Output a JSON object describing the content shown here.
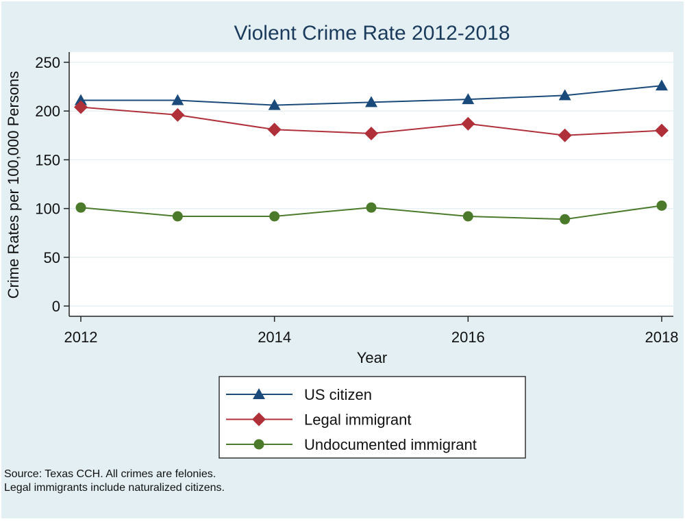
{
  "chart_data": {
    "type": "line",
    "title": "Violent Crime Rate 2012-2018",
    "xlabel": "Year",
    "ylabel": "Crime Rates per 100,000 Persons",
    "x": [
      2012,
      2013,
      2014,
      2015,
      2016,
      2017,
      2018
    ],
    "xticks": [
      2012,
      2014,
      2016,
      2018
    ],
    "yticks": [
      0,
      50,
      100,
      150,
      200,
      250
    ],
    "ylim": [
      0,
      250
    ],
    "grid": true,
    "legend_position": "bottom",
    "series": [
      {
        "name": "US citizen",
        "marker": "triangle",
        "color": "#1a4a7a",
        "values": [
          211,
          211,
          206,
          209,
          212,
          216,
          226
        ]
      },
      {
        "name": "Legal immigrant",
        "marker": "diamond",
        "color": "#b0303a",
        "values": [
          204,
          196,
          181,
          177,
          187,
          175,
          180
        ]
      },
      {
        "name": "Undocumented immigrant",
        "marker": "circle",
        "color": "#4a7a2a",
        "values": [
          101,
          92,
          92,
          101,
          92,
          89,
          103
        ]
      }
    ]
  },
  "notes": {
    "line1": "Source: Texas CCH. All crimes are felonies.",
    "line2": "Legal immigrants include naturalized citizens."
  }
}
